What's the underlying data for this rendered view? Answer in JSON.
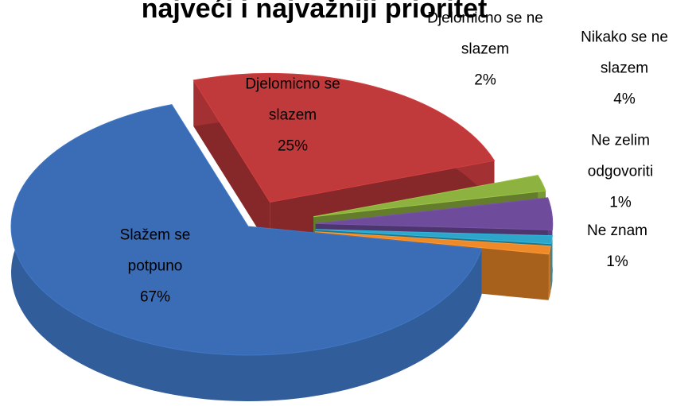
{
  "chart_data": {
    "type": "pie",
    "title": "najveći i najvažniji prioritet",
    "categories": [
      "Slažem se potpuno",
      "Djelomicno se slazem",
      "Djelomicno se ne slazem",
      "Nikako se ne slazem",
      "Ne zelim odgovoriti",
      "Ne znam"
    ],
    "values": [
      67,
      25,
      2,
      4,
      1,
      1
    ],
    "value_labels": [
      "67%",
      "25%",
      "2%",
      "4%",
      "1%",
      "1%"
    ],
    "colors": [
      "#3a6db5",
      "#c0393b",
      "#8db23f",
      "#6e4c9b",
      "#2ea6c9",
      "#ee8a2a"
    ]
  }
}
